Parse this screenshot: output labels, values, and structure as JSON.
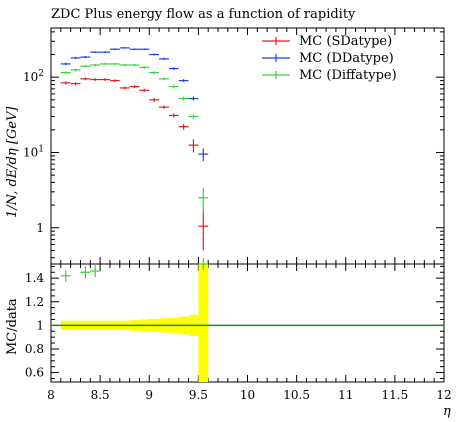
{
  "title": "ZDC Plus energy flow as a function of rapidity",
  "ylabel_main": "1/N, dE/dη [GeV]",
  "ylabel_ratio": "MC/data",
  "xlabel": "η",
  "legend": [
    {
      "label": "MC (SDatype)",
      "color": "#e41a1c"
    },
    {
      "label": "MC (DDatype)",
      "color": "#1f3fe0"
    },
    {
      "label": "MC (Diffatype)",
      "color": "#3ad23a"
    }
  ],
  "chart_data": [
    {
      "type": "scatter",
      "scale": "log",
      "xlim": [
        8,
        12
      ],
      "ylim": [
        0.33,
        450
      ],
      "x_ticks": [
        "8",
        "8.5",
        "9",
        "9.5",
        "10",
        "10.5",
        "11",
        "11.5",
        "12"
      ],
      "y_ticks": [
        "1",
        "10^1",
        "10^2"
      ],
      "ylabel": "1/N, dE/dη [GeV]",
      "series": [
        {
          "name": "MC (SDatype)",
          "color": "#e41a1c",
          "x": [
            8.15,
            8.25,
            8.35,
            8.45,
            8.55,
            8.65,
            8.75,
            8.85,
            8.95,
            9.05,
            9.15,
            9.25,
            9.35,
            9.45,
            9.55
          ],
          "y": [
            84,
            82,
            95,
            93,
            93,
            90,
            72,
            75,
            67,
            50,
            40,
            31,
            22,
            12.5,
            1.05
          ],
          "err": [
            4,
            4,
            4,
            4,
            4,
            4,
            3,
            3,
            3,
            3,
            2,
            2,
            2,
            2.5,
            0.55
          ]
        },
        {
          "name": "MC (DDatype)",
          "color": "#1f3fe0",
          "x": [
            8.15,
            8.25,
            8.35,
            8.45,
            8.55,
            8.65,
            8.75,
            8.85,
            8.95,
            9.05,
            9.15,
            9.25,
            9.35,
            9.45,
            9.55
          ],
          "y": [
            150,
            180,
            185,
            215,
            215,
            235,
            245,
            235,
            235,
            200,
            175,
            130,
            90,
            52,
            9.5
          ],
          "err": [
            6,
            6,
            6,
            6,
            6,
            6,
            6,
            6,
            6,
            6,
            6,
            5,
            4,
            3,
            1.8
          ]
        },
        {
          "name": "MC (Diffatype)",
          "color": "#3ad23a",
          "x": [
            8.15,
            8.25,
            8.35,
            8.45,
            8.55,
            8.65,
            8.75,
            8.85,
            8.95,
            9.05,
            9.15,
            9.25,
            9.35,
            9.45,
            9.55
          ],
          "y": [
            115,
            125,
            140,
            145,
            150,
            150,
            145,
            145,
            135,
            115,
            95,
            75,
            52,
            30,
            2.5
          ],
          "err": [
            5,
            5,
            5,
            5,
            5,
            5,
            5,
            5,
            5,
            5,
            4,
            4,
            3,
            2,
            0.9
          ]
        }
      ]
    },
    {
      "type": "scatter",
      "xlim": [
        8,
        12
      ],
      "ylim": [
        0.52,
        1.52
      ],
      "x_ticks": [
        "8",
        "8.5",
        "9",
        "9.5",
        "10",
        "10.5",
        "11",
        "11.5",
        "12"
      ],
      "y_ticks": [
        "0.6",
        "0.8",
        "1",
        "1.2",
        "1.4"
      ],
      "ylabel": "MC/data",
      "xlabel": "η",
      "reference_line": 1.0,
      "band": {
        "color": "#ffff00",
        "x": [
          8.1,
          8.2,
          8.3,
          8.4,
          8.5,
          8.6,
          8.7,
          8.8,
          8.9,
          9.0,
          9.1,
          9.2,
          9.3,
          9.4,
          9.5,
          9.6
        ],
        "half_width": [
          0.04,
          0.04,
          0.04,
          0.04,
          0.04,
          0.04,
          0.04,
          0.045,
          0.05,
          0.055,
          0.06,
          0.065,
          0.075,
          0.09,
          0.2
        ]
      },
      "series": [
        {
          "name": "MC (Diffatype)",
          "color": "#3ad23a",
          "x": [
            8.15,
            8.35,
            8.45,
            9.55
          ],
          "y": [
            1.42,
            1.45,
            1.46,
            1.52
          ]
        }
      ]
    }
  ]
}
